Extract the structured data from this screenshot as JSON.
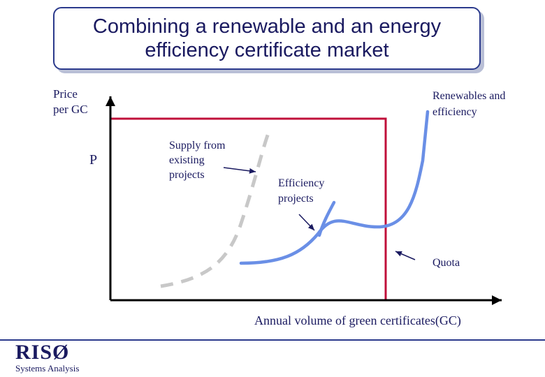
{
  "title": {
    "line1": "Combining a renewable and an energy",
    "line2": "efficiency certificate market"
  },
  "y_axis_label": {
    "line1": "Price",
    "line2": "per GC"
  },
  "price_marker": "P",
  "x_axis_label": "Annual volume of green certificates(GC)",
  "annotations": {
    "renewables_efficiency": {
      "line1": "Renewables and",
      "line2": "efficiency"
    },
    "supply_existing": {
      "line1": "Supply from",
      "line2": "existing",
      "line3": "projects"
    },
    "efficiency_projects": {
      "line1": "Efficiency",
      "line2": "projects"
    },
    "quota": "Quota"
  },
  "footer": {
    "logo": "RISØ",
    "subtitle": "Systems Analysis"
  },
  "colors": {
    "text": "#1a1a60",
    "curve": "#6a8fe6",
    "dashed_curve": "#c8c8c8",
    "quota_line": "#c0103a",
    "axis": "#000000",
    "frame": "#2b3a8c"
  }
}
